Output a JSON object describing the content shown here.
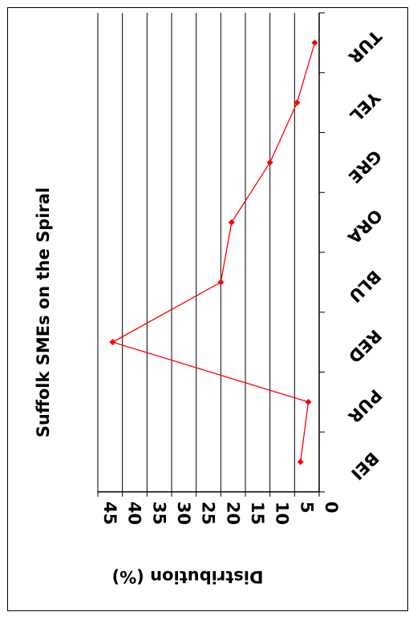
{
  "chart_data": {
    "type": "line",
    "title": "Suffolk SMEs on the Spiral",
    "xlabel": "",
    "ylabel": "Distribution (%)",
    "categories": [
      "BEI",
      "PUR",
      "RED",
      "BLU",
      "ORA",
      "GRE",
      "YEL",
      "TUR"
    ],
    "series": [
      {
        "values": [
          3.8,
          2.2,
          42,
          20,
          17.8,
          10,
          4.5,
          0.9
        ]
      }
    ],
    "ylim": [
      0,
      45
    ],
    "yticks": [
      "0",
      "5",
      "10",
      "15",
      "20",
      "25",
      "30",
      "35",
      "40",
      "45"
    ],
    "grid": true,
    "rotation": "chart rotated 90 degrees clockwise",
    "colors": {
      "series": "#ff0000",
      "grid": "#000000",
      "axis": "#000000"
    }
  }
}
